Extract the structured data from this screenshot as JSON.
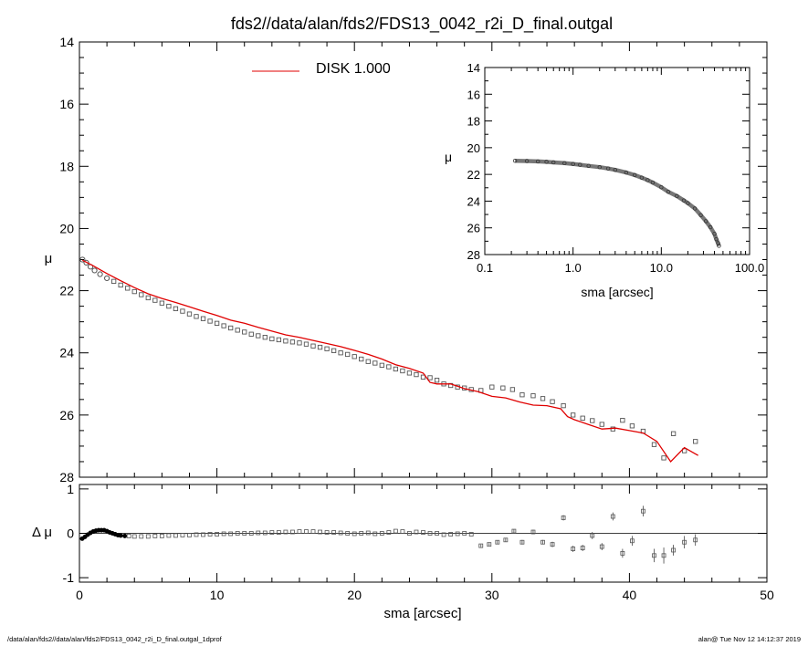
{
  "title": "fds2//data/alan/fds2/FDS13_0042_r2i_D_final.outgal",
  "footer": {
    "left": "/data/alan/fds2//data/alan/fds2/FDS13_0042_r2i_D_final.outgal_1dprof",
    "right": "alan@  Tue Nov 12 14:12:37 2019"
  },
  "colors": {
    "model": "#e00000",
    "axes": "#000000",
    "points": "#555555"
  },
  "chart_data": [
    {
      "id": "main-profile",
      "type": "scatter",
      "xlabel": "",
      "ylabel": "μ",
      "xlim": [
        0,
        50
      ],
      "ylim": [
        28,
        14
      ],
      "y_inverted": true,
      "yticks": [
        14,
        16,
        18,
        20,
        22,
        24,
        26,
        28
      ],
      "ytick_labels": [
        "14",
        "16",
        "18",
        "20",
        "22",
        "24",
        "26",
        "28"
      ],
      "legend": {
        "label": "DISK  1.000",
        "position": "top-center"
      },
      "series": [
        {
          "name": "",
          "kind": "data-points",
          "x": [
            0.22,
            0.5,
            0.8,
            1.1,
            1.5,
            2.0,
            2.5,
            3.0,
            3.5,
            4.0,
            4.5,
            5.0,
            5.5,
            6.0,
            6.5,
            7.0,
            7.5,
            8.0,
            8.5,
            9.0,
            9.5,
            10.0,
            10.5,
            11.0,
            11.5,
            12.0,
            12.5,
            13.0,
            13.5,
            14.0,
            14.5,
            15.0,
            15.5,
            16.0,
            16.5,
            17.0,
            17.5,
            18.0,
            18.5,
            19.0,
            19.5,
            20.0,
            20.5,
            21.0,
            21.5,
            22.0,
            22.5,
            23.0,
            23.5,
            24.0,
            24.5,
            25.0,
            25.5,
            26.0,
            26.5,
            27.0,
            27.5,
            28.0,
            28.5,
            29.2,
            30.0,
            30.8,
            31.5,
            32.2,
            33.0,
            33.7,
            34.4,
            35.2,
            35.9,
            36.6,
            37.3,
            38.0,
            38.8,
            39.5,
            40.2,
            41.0,
            41.8,
            42.5,
            43.2,
            44.0,
            44.8
          ],
          "y": [
            21.0,
            21.1,
            21.23,
            21.35,
            21.47,
            21.6,
            21.7,
            21.82,
            21.92,
            22.03,
            22.13,
            22.23,
            22.31,
            22.4,
            22.5,
            22.58,
            22.66,
            22.75,
            22.83,
            22.9,
            22.98,
            23.05,
            23.13,
            23.2,
            23.27,
            23.33,
            23.4,
            23.45,
            23.5,
            23.55,
            23.58,
            23.62,
            23.65,
            23.68,
            23.72,
            23.78,
            23.82,
            23.87,
            23.93,
            24.0,
            24.05,
            24.12,
            24.2,
            24.28,
            24.33,
            24.4,
            24.45,
            24.52,
            24.58,
            24.65,
            24.7,
            24.78,
            24.8,
            24.88,
            25.0,
            25.05,
            25.1,
            25.13,
            25.18,
            25.21,
            25.1,
            25.13,
            25.18,
            25.35,
            25.38,
            25.47,
            25.57,
            25.7,
            26.0,
            26.1,
            26.18,
            26.3,
            26.45,
            26.17,
            26.35,
            26.52,
            26.95,
            27.38,
            26.6,
            27.15,
            26.85
          ]
        },
        {
          "name": "",
          "kind": "model-line",
          "x": [
            0.22,
            1.0,
            2.0,
            3.0,
            4.0,
            5.0,
            6.0,
            7.0,
            8.0,
            9.0,
            10.0,
            11.0,
            12.0,
            13.0,
            14.0,
            15.0,
            16.0,
            17.0,
            18.0,
            19.0,
            20.0,
            21.0,
            22.0,
            23.0,
            24.0,
            25.0,
            25.5,
            26.0,
            27.0,
            28.0,
            29.0,
            30.0,
            31.0,
            32.0,
            33.0,
            34.0,
            35.0,
            35.5,
            36.0,
            37.0,
            38.0,
            39.0,
            40.0,
            41.0,
            42.0,
            43.0,
            44.0,
            45.0
          ],
          "y": [
            21.02,
            21.2,
            21.45,
            21.68,
            21.9,
            22.1,
            22.25,
            22.38,
            22.52,
            22.66,
            22.8,
            22.95,
            23.05,
            23.18,
            23.3,
            23.42,
            23.5,
            23.6,
            23.7,
            23.8,
            23.92,
            24.05,
            24.2,
            24.38,
            24.5,
            24.65,
            24.95,
            25.0,
            25.0,
            25.15,
            25.25,
            25.4,
            25.45,
            25.58,
            25.68,
            25.7,
            25.8,
            26.05,
            26.15,
            26.3,
            26.45,
            26.42,
            26.5,
            26.58,
            26.85,
            27.5,
            27.05,
            27.3
          ]
        }
      ]
    },
    {
      "id": "inset-log",
      "type": "scatter",
      "xlabel": "sma [arcsec]",
      "ylabel": "μ",
      "xscale": "log",
      "xlim": [
        0.1,
        100
      ],
      "xticks": [
        0.1,
        1,
        10,
        100
      ],
      "xtick_labels": [
        "0.1",
        "1.0",
        "10.0",
        "100.0"
      ],
      "ylim": [
        28,
        14
      ],
      "y_inverted": true,
      "yticks": [
        14,
        16,
        18,
        20,
        22,
        24,
        26,
        28
      ],
      "ytick_labels": [
        "14",
        "16",
        "18",
        "20",
        "22",
        "24",
        "26",
        "28"
      ],
      "series": [
        {
          "name": "",
          "kind": "profile",
          "x": [
            0.22,
            0.3,
            0.4,
            0.5,
            0.6,
            0.8,
            1.0,
            1.2,
            1.5,
            2.0,
            2.5,
            3.0,
            4.0,
            5.0,
            6.0,
            7.0,
            8.0,
            10.0,
            12.0,
            15.0,
            18.0,
            20.0,
            24.0,
            28.0,
            32.0,
            36.0,
            40.0,
            42.0,
            44.0,
            45.0
          ],
          "y": [
            20.98,
            21.0,
            21.03,
            21.06,
            21.1,
            21.16,
            21.22,
            21.28,
            21.36,
            21.46,
            21.56,
            21.66,
            21.86,
            22.05,
            22.24,
            22.43,
            22.61,
            22.96,
            23.3,
            23.62,
            23.95,
            24.15,
            24.55,
            25.05,
            25.5,
            25.95,
            26.45,
            26.85,
            27.15,
            27.35
          ]
        }
      ]
    },
    {
      "id": "residuals",
      "type": "scatter",
      "xlabel": "sma [arcsec]",
      "ylabel": "Δ μ",
      "xlim": [
        0,
        50
      ],
      "xticks": [
        0,
        10,
        20,
        30,
        40,
        50
      ],
      "xtick_labels": [
        "0",
        "10",
        "20",
        "30",
        "40",
        "50"
      ],
      "ylim": [
        -1.1,
        1.1
      ],
      "yticks": [
        -1,
        0,
        1
      ],
      "ytick_labels": [
        "-1",
        "0",
        "1"
      ],
      "zero_line": true,
      "series": [
        {
          "name": "",
          "kind": "residual-points",
          "x": [
            0.2,
            0.4,
            0.6,
            0.8,
            1.0,
            1.2,
            1.4,
            1.6,
            1.8,
            2.0,
            2.2,
            2.4,
            2.6,
            2.8,
            3.0,
            3.3,
            3.6,
            4.0,
            4.5,
            5.0,
            5.5,
            6.0,
            6.5,
            7.0,
            7.5,
            8.0,
            8.5,
            9.0,
            9.5,
            10.0,
            10.5,
            11.0,
            11.5,
            12.0,
            12.5,
            13.0,
            13.5,
            14.0,
            14.5,
            15.0,
            15.5,
            16.0,
            16.5,
            17.0,
            17.5,
            18.0,
            18.5,
            19.0,
            19.5,
            20.0,
            20.5,
            21.0,
            21.5,
            22.0,
            22.5,
            23.0,
            23.5,
            24.0,
            24.5,
            25.0,
            25.5,
            26.0,
            26.5,
            27.0,
            27.5,
            28.0,
            28.5
          ],
          "y": [
            -0.12,
            -0.08,
            -0.03,
            0.01,
            0.04,
            0.06,
            0.07,
            0.07,
            0.07,
            0.05,
            0.02,
            0.0,
            -0.02,
            -0.04,
            -0.05,
            -0.06,
            -0.06,
            -0.07,
            -0.07,
            -0.07,
            -0.06,
            -0.06,
            -0.05,
            -0.05,
            -0.04,
            -0.04,
            -0.03,
            -0.03,
            -0.02,
            -0.02,
            -0.01,
            -0.01,
            0.0,
            0.0,
            0.0,
            0.01,
            0.01,
            0.02,
            0.02,
            0.03,
            0.03,
            0.04,
            0.04,
            0.04,
            0.03,
            0.02,
            0.02,
            0.01,
            0.0,
            -0.01,
            0.0,
            0.01,
            -0.01,
            0.0,
            0.02,
            0.05,
            0.04,
            0.0,
            0.03,
            0.02,
            0.0,
            0.0,
            -0.03,
            -0.02,
            -0.01,
            0.0,
            -0.02
          ]
        },
        {
          "name": "",
          "kind": "residual-errorbars",
          "x": [
            29.2,
            29.8,
            30.4,
            31.0,
            31.6,
            32.2,
            33.0,
            33.7,
            34.4,
            35.2,
            35.9,
            36.6,
            37.3,
            38.0,
            38.8,
            39.5,
            40.2,
            41.0,
            41.8,
            42.5,
            43.2,
            44.0,
            44.8
          ],
          "y": [
            -0.28,
            -0.25,
            -0.2,
            -0.15,
            0.05,
            -0.2,
            0.03,
            -0.2,
            -0.25,
            0.35,
            -0.35,
            -0.33,
            -0.05,
            -0.3,
            0.38,
            -0.45,
            -0.17,
            0.5,
            -0.5,
            -0.5,
            -0.38,
            -0.2,
            -0.15
          ],
          "err": [
            0.03,
            0.03,
            0.04,
            0.04,
            0.04,
            0.05,
            0.05,
            0.05,
            0.06,
            0.06,
            0.07,
            0.07,
            0.08,
            0.08,
            0.09,
            0.1,
            0.11,
            0.12,
            0.15,
            0.18,
            0.12,
            0.14,
            0.13
          ]
        }
      ]
    }
  ]
}
